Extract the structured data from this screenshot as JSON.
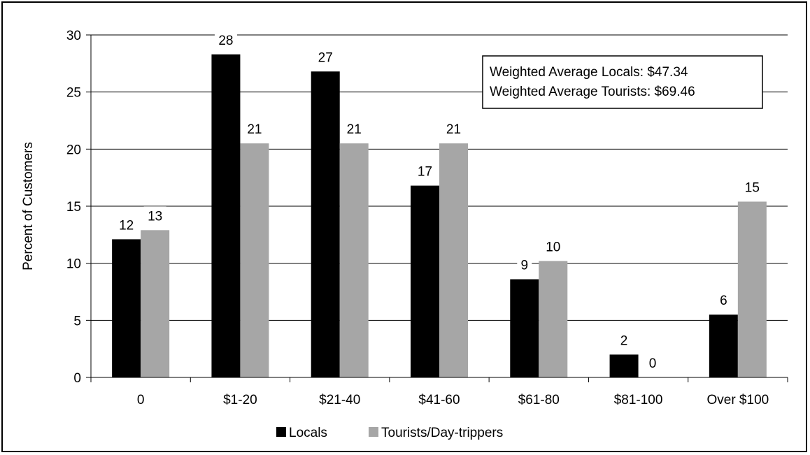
{
  "chart_data": {
    "type": "bar",
    "categories": [
      "0",
      "$1-20",
      "$21-40",
      "$41-60",
      "$61-80",
      "$81-100",
      "Over $100"
    ],
    "series": [
      {
        "name": "Locals",
        "values": [
          12.1,
          28.3,
          26.8,
          16.8,
          8.6,
          2.0,
          5.5
        ],
        "labels": [
          "12",
          "28",
          "27",
          "17",
          "9",
          "2",
          "6"
        ],
        "color": "#000000"
      },
      {
        "name": "Tourists/Day-trippers",
        "values": [
          12.9,
          20.5,
          20.5,
          20.5,
          10.2,
          0,
          15.4
        ],
        "labels": [
          "13",
          "21",
          "21",
          "21",
          "10",
          "0",
          "15"
        ],
        "color": "#A6A6A6"
      }
    ],
    "ylabel": "Percent of Customers",
    "xlabel": "",
    "ylim": [
      0,
      30
    ],
    "yticks": [
      0,
      5,
      10,
      15,
      20,
      25,
      30
    ],
    "grid": true,
    "legend": "bottom",
    "annotation": [
      "Weighted Average Locals: $47.34",
      "Weighted Average Tourists: $69.46"
    ]
  }
}
